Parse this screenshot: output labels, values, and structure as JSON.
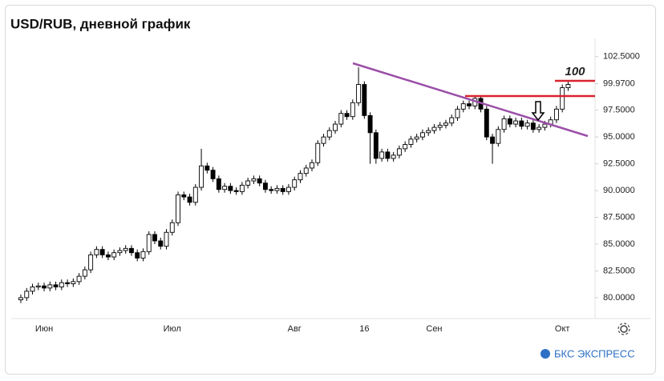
{
  "chart_data": {
    "type": "candlestick",
    "title": "USD/RUB, дневной график",
    "categories": [
      null,
      null,
      null,
      null,
      "Июн",
      null,
      null,
      null,
      null,
      null,
      null,
      null,
      null,
      null,
      null,
      null,
      null,
      null,
      null,
      null,
      null,
      null,
      null,
      null,
      null,
      null,
      "Июл",
      null,
      null,
      null,
      null,
      null,
      null,
      null,
      null,
      null,
      null,
      null,
      null,
      null,
      null,
      null,
      null,
      null,
      null,
      null,
      null,
      "Авг",
      null,
      null,
      null,
      null,
      null,
      null,
      null,
      null,
      null,
      null,
      null,
      "16",
      null,
      null,
      null,
      null,
      null,
      null,
      null,
      null,
      null,
      null,
      null,
      "Сен",
      null,
      null,
      null,
      null,
      null,
      null,
      null,
      null,
      null,
      null,
      null,
      null,
      null,
      null,
      null,
      null,
      null,
      null,
      null,
      null,
      null,
      "Окт",
      null
    ],
    "open": [
      79.8,
      80.0,
      80.6,
      81.0,
      81.1,
      80.9,
      81.2,
      81.0,
      81.4,
      81.3,
      81.5,
      82.0,
      82.6,
      84.0,
      84.5,
      84.0,
      83.8,
      84.2,
      84.4,
      84.6,
      84.2,
      83.7,
      84.3,
      85.9,
      85.3,
      84.8,
      86.1,
      87.0,
      89.6,
      89.4,
      88.9,
      90.3,
      92.3,
      91.9,
      91.1,
      90.1,
      90.4,
      90.0,
      89.9,
      90.5,
      90.9,
      91.1,
      90.7,
      90.1,
      90.0,
      90.2,
      89.9,
      90.3,
      91.0,
      91.6,
      92.1,
      92.6,
      94.4,
      95.0,
      95.6,
      96.2,
      97.2,
      96.9,
      98.2,
      99.9,
      97.0,
      95.4,
      93.0,
      93.6,
      93.0,
      93.3,
      93.9,
      94.3,
      94.8,
      95.0,
      95.4,
      95.6,
      95.9,
      96.1,
      96.3,
      96.8,
      97.6,
      98.1,
      97.9,
      98.6,
      97.6,
      95.0,
      94.4,
      95.7,
      96.7,
      96.2,
      96.5,
      96.0,
      96.3,
      95.7,
      95.9,
      96.2,
      96.6,
      97.6,
      99.6
    ],
    "high": [
      80.3,
      80.9,
      81.3,
      81.4,
      81.4,
      81.5,
      81.5,
      81.7,
      81.7,
      81.8,
      82.3,
      82.9,
      84.3,
      84.8,
      84.8,
      84.3,
      84.5,
      84.7,
      84.9,
      84.9,
      84.5,
      84.6,
      86.2,
      86.2,
      85.6,
      86.4,
      87.3,
      89.9,
      89.9,
      89.7,
      90.6,
      93.9,
      92.6,
      92.2,
      91.4,
      90.7,
      90.7,
      90.3,
      90.8,
      91.2,
      91.4,
      91.4,
      91.0,
      90.4,
      90.5,
      90.5,
      90.6,
      91.3,
      91.9,
      92.4,
      92.9,
      94.7,
      95.3,
      95.9,
      96.5,
      97.5,
      97.5,
      98.5,
      101.5,
      100.2,
      97.3,
      95.7,
      93.9,
      93.9,
      93.6,
      94.2,
      94.6,
      95.1,
      95.3,
      95.7,
      95.9,
      96.2,
      96.4,
      96.6,
      97.1,
      97.9,
      98.4,
      98.4,
      98.9,
      98.9,
      97.9,
      95.3,
      96.0,
      97.0,
      97.0,
      96.8,
      96.8,
      96.6,
      96.6,
      96.2,
      96.5,
      96.9,
      97.9,
      99.9,
      100.2
    ],
    "low": [
      79.5,
      79.7,
      80.3,
      80.7,
      80.6,
      80.6,
      80.7,
      80.7,
      81.0,
      81.0,
      81.2,
      81.7,
      82.3,
      83.7,
      83.7,
      83.5,
      83.5,
      83.9,
      84.1,
      83.9,
      83.4,
      83.4,
      84.0,
      85.0,
      84.5,
      84.5,
      85.8,
      86.7,
      89.1,
      88.6,
      88.6,
      90.0,
      91.6,
      90.8,
      89.8,
      89.8,
      89.7,
      89.6,
      89.6,
      90.2,
      90.6,
      90.4,
      89.8,
      89.7,
      89.7,
      89.6,
      89.6,
      90.0,
      90.7,
      91.3,
      91.8,
      92.3,
      94.1,
      94.7,
      95.3,
      95.9,
      96.6,
      96.6,
      97.9,
      96.7,
      92.5,
      92.5,
      92.7,
      92.7,
      92.7,
      93.0,
      93.6,
      94.0,
      94.5,
      94.7,
      95.1,
      95.3,
      95.6,
      95.8,
      96.0,
      96.5,
      97.3,
      97.6,
      97.6,
      97.3,
      94.7,
      92.5,
      94.1,
      95.4,
      95.9,
      95.9,
      95.7,
      95.7,
      95.4,
      95.4,
      95.6,
      95.9,
      96.3,
      97.3,
      99.3
    ],
    "close": [
      80.0,
      80.6,
      81.0,
      81.1,
      80.9,
      81.2,
      81.0,
      81.4,
      81.3,
      81.5,
      82.0,
      82.6,
      84.0,
      84.5,
      84.0,
      83.8,
      84.2,
      84.4,
      84.6,
      84.2,
      83.7,
      84.3,
      85.9,
      85.3,
      84.8,
      86.1,
      87.0,
      89.6,
      89.4,
      88.9,
      90.3,
      92.3,
      91.9,
      91.1,
      90.1,
      90.4,
      90.0,
      89.9,
      90.5,
      90.9,
      91.1,
      90.7,
      90.1,
      90.0,
      90.2,
      89.9,
      90.3,
      91.0,
      91.6,
      92.1,
      92.6,
      94.4,
      95.0,
      95.6,
      96.2,
      97.2,
      96.9,
      98.2,
      99.9,
      97.0,
      95.4,
      93.0,
      93.6,
      93.0,
      93.3,
      93.9,
      94.3,
      94.8,
      95.0,
      95.4,
      95.6,
      95.9,
      96.1,
      96.3,
      96.8,
      97.6,
      98.1,
      97.9,
      98.6,
      97.6,
      95.0,
      94.4,
      95.7,
      96.7,
      96.2,
      96.5,
      96.0,
      96.3,
      95.7,
      95.9,
      96.2,
      96.6,
      97.6,
      99.6,
      99.9
    ],
    "up_color": "#ffffff",
    "down_color": "#000000",
    "ylim": [
      78.05,
      104.2
    ],
    "yticks": [
      {
        "value": 80,
        "label": "80.0000"
      },
      {
        "value": 82.5,
        "label": "82.5000"
      },
      {
        "value": 85,
        "label": "85.0000"
      },
      {
        "value": 87.5,
        "label": "87.5000"
      },
      {
        "value": 90,
        "label": "90.0000"
      },
      {
        "value": 92.5,
        "label": "92.5000"
      },
      {
        "value": 95,
        "label": "95.0000"
      },
      {
        "value": 97.5,
        "label": "97.5000"
      },
      {
        "value": 99.97,
        "label": "99.9700"
      },
      {
        "value": 102.5,
        "label": "102.5000"
      }
    ],
    "annotation": "100",
    "brand": "БКС ЭКСПРЕСС"
  }
}
